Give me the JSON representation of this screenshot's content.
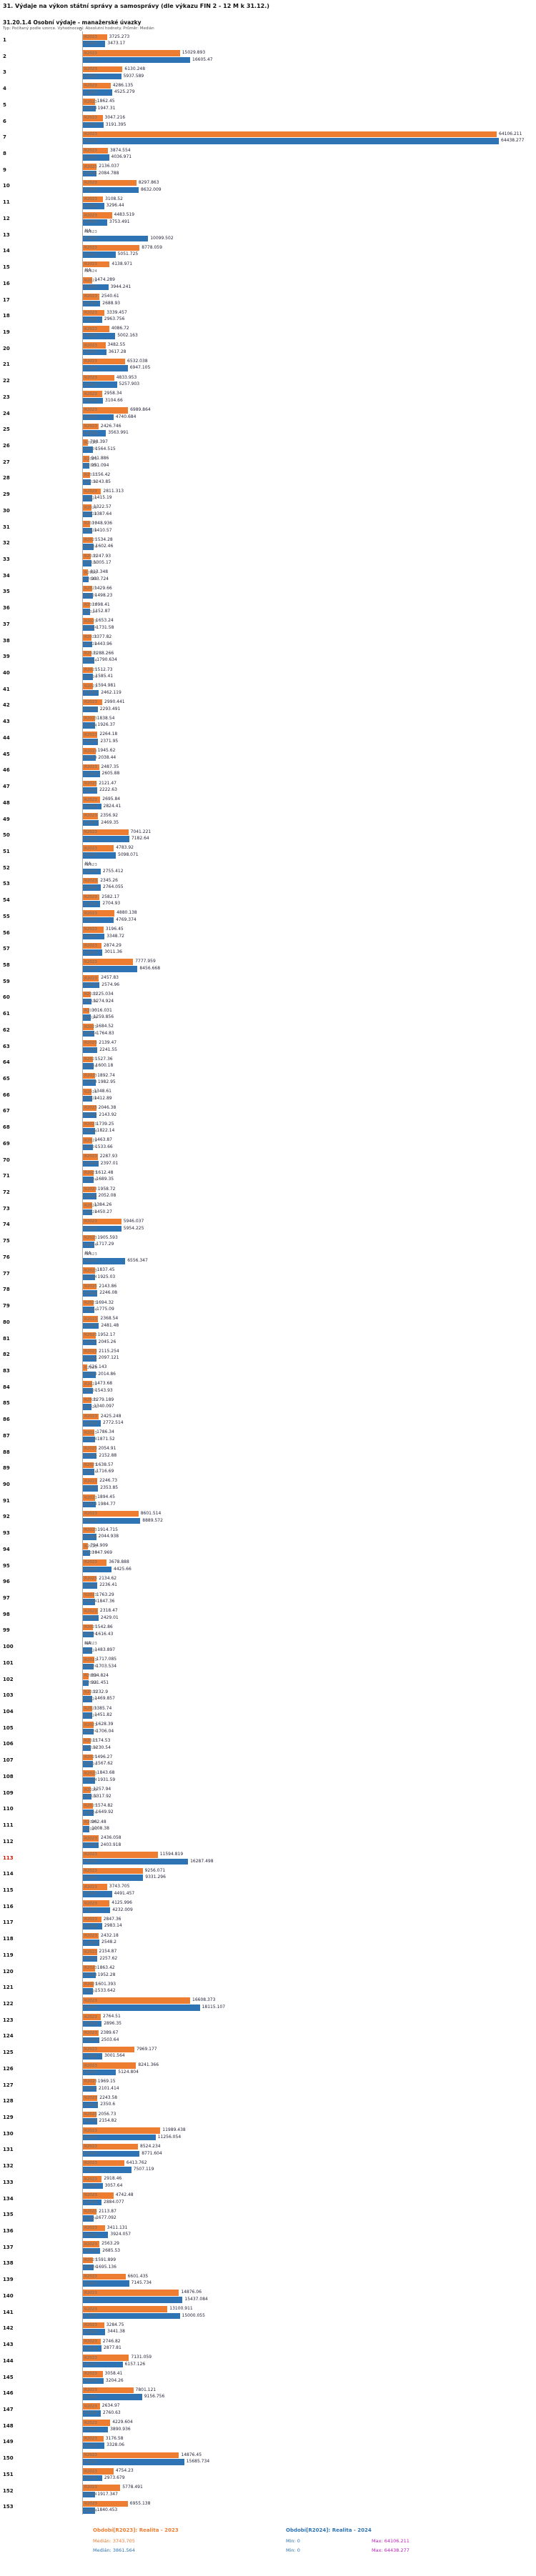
{
  "header": {
    "title": "31. Výdaje na výkon státní správy a samosprávy (dle výkazu FIN 2 - 12 M k 31.12.)",
    "subtitle": "31.20.1.4 Osobní výdaje - manažerské úvazky",
    "meta": "Typ: Počítaný podle vzorce. Vyhodnocení: Absolutní hodnoty. Průměr: Medián"
  },
  "axis": {
    "zero_tick": "0"
  },
  "footer": {
    "legend_2023": "Období[R2023]: Realita - 2023",
    "legend_2024": "Období[R2024]: Realita - 2024",
    "stats_2023": {
      "median": "Medián: 3743.705",
      "min": "Min: 0",
      "max": "Max: 64106.211"
    },
    "stats_2024": {
      "median": "Medián: 3861.564",
      "min": "Min: 0",
      "max": "Max: 64438.277"
    }
  },
  "chart_data": {
    "type": "bar",
    "orientation": "horizontal",
    "title": "31.20.1.4 Osobní výdaje - manažerské úvazky",
    "series_names": [
      "R2023",
      "R2024"
    ],
    "colors": {
      "R2023": "#ED7D31",
      "R2024": "#2E74B5",
      "highlight_row": "#D11500",
      "max_stat": "#C01FC0"
    },
    "x_min": 0,
    "x_max": 64438.277,
    "legend_position": "bottom",
    "grid": false,
    "rows": [
      {
        "id": 1,
        "R2023": 3725.273,
        "R2024": 3473.17
      },
      {
        "id": 2,
        "R2023": 15029.893,
        "R2024": 16605.47
      },
      {
        "id": 3,
        "R2023": 6130.248,
        "R2024": 5937.589
      },
      {
        "id": 4,
        "R2023": 4286.135,
        "R2024": 4525.279
      },
      {
        "id": 5,
        "R2023": 1862.45,
        "R2024": 1947.31
      },
      {
        "id": 6,
        "R2023": 3047.216,
        "R2024": 3191.395
      },
      {
        "id": 7,
        "R2023": 64106.211,
        "R2024": 64438.277
      },
      {
        "id": 8,
        "R2023": 3874.554,
        "R2024": 4036.971
      },
      {
        "id": 9,
        "R2023": 2136.037,
        "R2024": 2084.788
      },
      {
        "id": 10,
        "R2023": 8297.863,
        "R2024": 8632.009
      },
      {
        "id": 11,
        "R2023": 3108.52,
        "R2024": 3296.44
      },
      {
        "id": 12,
        "R2023": 4483.519,
        "R2024": 3753.491
      },
      {
        "id": 13,
        "R2023": "NA",
        "R2024": 10099.502
      },
      {
        "id": 14,
        "R2023": 8778.059,
        "R2024": 5051.725
      },
      {
        "id": 15,
        "R2023": 4138.971,
        "R2024": "NA"
      },
      {
        "id": 16,
        "R2023": 1474.289,
        "R2024": 3944.241
      },
      {
        "id": 17,
        "R2023": 2540.61,
        "R2024": 2688.93
      },
      {
        "id": 18,
        "R2023": 3339.457,
        "R2024": 2963.756
      },
      {
        "id": 19,
        "R2023": 4086.72,
        "R2024": 5002.163
      },
      {
        "id": 20,
        "R2023": 3482.55,
        "R2024": 3617.28
      },
      {
        "id": 21,
        "R2023": 6532.038,
        "R2024": 6947.105
      },
      {
        "id": 22,
        "R2023": 4833.953,
        "R2024": 5257.903
      },
      {
        "id": 23,
        "R2023": 2958.34,
        "R2024": 3104.66
      },
      {
        "id": 24,
        "R2023": 6989.864,
        "R2024": 4740.684
      },
      {
        "id": 25,
        "R2023": 2426.746,
        "R2024": 3563.991
      },
      {
        "id": 26,
        "R2023": 788.397,
        "R2024": 1564.515
      },
      {
        "id": 27,
        "R2023": 941.886,
        "R2024": 951.094
      },
      {
        "id": 28,
        "R2023": 1156.42,
        "R2024": 1243.85
      },
      {
        "id": 29,
        "R2023": 2811.313,
        "R2024": 1415.19
      },
      {
        "id": 30,
        "R2023": 1322.57,
        "R2024": 1387.64
      },
      {
        "id": 31,
        "R2023": 1048.936,
        "R2024": 1410.57
      },
      {
        "id": 32,
        "R2023": 1534.28,
        "R2024": 1602.46
      },
      {
        "id": 33,
        "R2023": 1247.93,
        "R2024": 1305.17
      },
      {
        "id": 34,
        "R2023": 813.348,
        "R2024": 903.724
      },
      {
        "id": 35,
        "R2023": 1429.66,
        "R2024": 1498.23
      },
      {
        "id": 36,
        "R2023": 1098.41,
        "R2024": 1152.87
      },
      {
        "id": 37,
        "R2023": 1653.24,
        "R2024": 1731.58
      },
      {
        "id": 38,
        "R2023": 1377.82,
        "R2024": 1443.96
      },
      {
        "id": 39,
        "R2023": 1288.266,
        "R2024": 1790.634
      },
      {
        "id": 40,
        "R2023": 1512.73,
        "R2024": 1585.41
      },
      {
        "id": 41,
        "R2023": 1594.981,
        "R2024": 2462.119
      },
      {
        "id": 42,
        "R2023": 2990.441,
        "R2024": 2293.491
      },
      {
        "id": 43,
        "R2023": 1838.54,
        "R2024": 1926.37
      },
      {
        "id": 44,
        "R2023": 2264.18,
        "R2024": 2371.95
      },
      {
        "id": 45,
        "R2023": 1945.62,
        "R2024": 2038.44
      },
      {
        "id": 46,
        "R2023": 2487.35,
        "R2024": 2605.88
      },
      {
        "id": 47,
        "R2023": 2121.47,
        "R2024": 2222.63
      },
      {
        "id": 48,
        "R2023": 2695.84,
        "R2024": 2824.41
      },
      {
        "id": 49,
        "R2023": 2356.92,
        "R2024": 2469.35
      },
      {
        "id": 50,
        "R2023": 7041.221,
        "R2024": 7182.64
      },
      {
        "id": 51,
        "R2023": 4783.92,
        "R2024": 5098.071
      },
      {
        "id": 52,
        "R2023": "NA",
        "R2024": 2755.412
      },
      {
        "id": 53,
        "R2023": 2345.26,
        "R2024": 2764.055
      },
      {
        "id": 54,
        "R2023": 2582.17,
        "R2024": 2704.93
      },
      {
        "id": 55,
        "R2023": 4880.138,
        "R2024": 4769.374
      },
      {
        "id": 56,
        "R2023": 3196.45,
        "R2024": 3348.72
      },
      {
        "id": 57,
        "R2023": 2874.29,
        "R2024": 3011.36
      },
      {
        "id": 58,
        "R2023": 7777.959,
        "R2024": 8456.668
      },
      {
        "id": 59,
        "R2023": 2457.83,
        "R2024": 2574.96
      },
      {
        "id": 60,
        "R2023": 1225.034,
        "R2024": 1274.924
      },
      {
        "id": 61,
        "R2023": 1016.031,
        "R2024": 1259.856
      },
      {
        "id": 62,
        "R2023": 1684.52,
        "R2024": 1764.83
      },
      {
        "id": 63,
        "R2023": 2139.47,
        "R2024": 2241.55
      },
      {
        "id": 64,
        "R2023": 1527.36,
        "R2024": 1600.18
      },
      {
        "id": 65,
        "R2023": 1892.74,
        "R2024": 1982.95
      },
      {
        "id": 66,
        "R2023": 1348.61,
        "R2024": 1412.89
      },
      {
        "id": 67,
        "R2023": 2046.38,
        "R2024": 2143.92
      },
      {
        "id": 68,
        "R2023": 1739.25,
        "R2024": 1822.14
      },
      {
        "id": 69,
        "R2023": 1463.87,
        "R2024": 1533.66
      },
      {
        "id": 70,
        "R2023": 2287.93,
        "R2024": 2397.01
      },
      {
        "id": 71,
        "R2023": 1612.48,
        "R2024": 1689.35
      },
      {
        "id": 72,
        "R2023": 1958.72,
        "R2024": 2052.08
      },
      {
        "id": 73,
        "R2023": 1384.26,
        "R2024": 1450.27
      },
      {
        "id": 74,
        "R2023": 5946.037,
        "R2024": 5954.225
      },
      {
        "id": 75,
        "R2023": 1905.593,
        "R2024": 1717.29
      },
      {
        "id": 76,
        "R2023": "NA",
        "R2024": 6556.347
      },
      {
        "id": 77,
        "R2023": 1837.45,
        "R2024": 1925.03
      },
      {
        "id": 78,
        "R2023": 2143.86,
        "R2024": 2246.08
      },
      {
        "id": 79,
        "R2023": 1694.32,
        "R2024": 1775.09
      },
      {
        "id": 80,
        "R2023": 2368.54,
        "R2024": 2481.48
      },
      {
        "id": 81,
        "R2023": 1952.17,
        "R2024": 2045.26
      },
      {
        "id": 82,
        "R2023": 2115.254,
        "R2024": 2097.121
      },
      {
        "id": 83,
        "R2023": 626.143,
        "R2024": 2014.86
      },
      {
        "id": 84,
        "R2023": 1473.68,
        "R2024": 1543.93
      },
      {
        "id": 85,
        "R2023": 1279.189,
        "R2024": 1340.097
      },
      {
        "id": 86,
        "R2023": 2425.248,
        "R2024": 2772.514
      },
      {
        "id": 87,
        "R2023": 1786.34,
        "R2024": 1871.52
      },
      {
        "id": 88,
        "R2023": 2054.91,
        "R2024": 2152.88
      },
      {
        "id": 89,
        "R2023": 1638.57,
        "R2024": 1716.69
      },
      {
        "id": 90,
        "R2023": 2246.73,
        "R2024": 2353.85
      },
      {
        "id": 91,
        "R2023": 1894.45,
        "R2024": 1984.77
      },
      {
        "id": 92,
        "R2023": 8601.514,
        "R2024": 8889.572
      },
      {
        "id": 93,
        "R2023": 1914.715,
        "R2024": 2044.938
      },
      {
        "id": 94,
        "R2023": 794.909,
        "R2024": 1047.969
      },
      {
        "id": 95,
        "R2023": 3678.888,
        "R2024": 4425.66
      },
      {
        "id": 96,
        "R2023": 2134.62,
        "R2024": 2236.41
      },
      {
        "id": 97,
        "R2023": 1763.29,
        "R2024": 1847.36
      },
      {
        "id": 98,
        "R2023": 2318.47,
        "R2024": 2429.01
      },
      {
        "id": 99,
        "R2023": 1542.86,
        "R2024": 1616.43
      },
      {
        "id": 100,
        "R2023": "NA",
        "R2024": 1483.897
      },
      {
        "id": 101,
        "R2023": 1717.085,
        "R2024": 1703.534
      },
      {
        "id": 102,
        "R2023": 894.824,
        "R2024": 921.451
      },
      {
        "id": 103,
        "R2023": 1232.9,
        "R2024": 1469.857
      },
      {
        "id": 104,
        "R2023": 1385.74,
        "R2024": 1451.82
      },
      {
        "id": 105,
        "R2023": 1628.39,
        "R2024": 1706.04
      },
      {
        "id": 106,
        "R2023": 1174.53,
        "R2024": 1230.54
      },
      {
        "id": 107,
        "R2023": 1496.27,
        "R2024": 1567.62
      },
      {
        "id": 108,
        "R2023": 1843.68,
        "R2024": 1931.59
      },
      {
        "id": 109,
        "R2023": 1257.94,
        "R2024": 1317.92
      },
      {
        "id": 110,
        "R2023": 1574.82,
        "R2024": 1649.92
      },
      {
        "id": 111,
        "R2023": 962.48,
        "R2024": 1008.38
      },
      {
        "id": 112,
        "R2023": 2436.058,
        "R2024": 2403.918
      },
      {
        "id": 113,
        "R2023": 11594.819,
        "R2024": 16287.498,
        "hl": true
      },
      {
        "id": 114,
        "R2023": 9256.071,
        "R2024": 9331.296
      },
      {
        "id": 115,
        "R2023": 3743.705,
        "R2024": 4491.457
      },
      {
        "id": 116,
        "R2023": 4125.996,
        "R2024": 4232.009
      },
      {
        "id": 117,
        "R2023": 2847.36,
        "R2024": 2983.14
      },
      {
        "id": 118,
        "R2023": 2432.18,
        "R2024": 2548.2
      },
      {
        "id": 119,
        "R2023": 2154.87,
        "R2024": 2257.62
      },
      {
        "id": 120,
        "R2023": 1863.42,
        "R2024": 1952.28
      },
      {
        "id": 121,
        "R2023": 1601.393,
        "R2024": 1533.642
      },
      {
        "id": 122,
        "R2023": 16608.373,
        "R2024": 18115.107
      },
      {
        "id": 123,
        "R2023": 2764.51,
        "R2024": 2896.35
      },
      {
        "id": 124,
        "R2023": 2389.67,
        "R2024": 2503.64
      },
      {
        "id": 125,
        "R2023": 7969.177,
        "R2024": 3001.564
      },
      {
        "id": 126,
        "R2023": 8241.366,
        "R2024": 5124.804
      },
      {
        "id": 127,
        "R2023": 1969.15,
        "R2024": 2101.414
      },
      {
        "id": 128,
        "R2023": 2243.58,
        "R2024": 2350.6
      },
      {
        "id": 129,
        "R2023": 2056.73,
        "R2024": 2154.82
      },
      {
        "id": 130,
        "R2023": 11989.438,
        "R2024": 11256.054
      },
      {
        "id": 131,
        "R2023": 8524.234,
        "R2024": 8771.604
      },
      {
        "id": 132,
        "R2023": 6413.762,
        "R2024": 7507.119
      },
      {
        "id": 133,
        "R2023": 2918.46,
        "R2024": 3057.64
      },
      {
        "id": 134,
        "R2023": 4742.48,
        "R2024": 2884.077
      },
      {
        "id": 135,
        "R2023": 2113.87,
        "R2024": 1677.092
      },
      {
        "id": 136,
        "R2023": 3411.131,
        "R2024": 3924.057
      },
      {
        "id": 137,
        "R2023": 2563.29,
        "R2024": 2685.53
      },
      {
        "id": 138,
        "R2023": 1591.899,
        "R2024": 1695.136
      },
      {
        "id": 139,
        "R2023": 6601.435,
        "R2024": 7145.734
      },
      {
        "id": 140,
        "R2023": 14876.06,
        "R2024": 15437.084
      },
      {
        "id": 141,
        "R2023": 13100.911,
        "R2024": 15000.055
      },
      {
        "id": 142,
        "R2023": 3284.75,
        "R2024": 3441.38
      },
      {
        "id": 143,
        "R2023": 2746.82,
        "R2024": 2877.81
      },
      {
        "id": 144,
        "R2023": 7131.059,
        "R2024": 6157.126
      },
      {
        "id": 145,
        "R2023": 3058.41,
        "R2024": 3204.26
      },
      {
        "id": 146,
        "R2023": 7801.121,
        "R2024": 9156.756
      },
      {
        "id": 147,
        "R2023": 2634.97,
        "R2024": 2760.63
      },
      {
        "id": 148,
        "R2023": 4229.604,
        "R2024": 3890.936
      },
      {
        "id": 149,
        "R2023": 3176.58,
        "R2024": 3328.06
      },
      {
        "id": 150,
        "R2023": 14876.45,
        "R2024": 15685.734
      },
      {
        "id": 151,
        "R2023": 4754.23,
        "R2024": 2973.679
      },
      {
        "id": 152,
        "R2023": 5778.491,
        "R2024": 1917.347
      },
      {
        "id": 153,
        "R2023": 6955.138,
        "R2024": 1840.453
      }
    ]
  }
}
